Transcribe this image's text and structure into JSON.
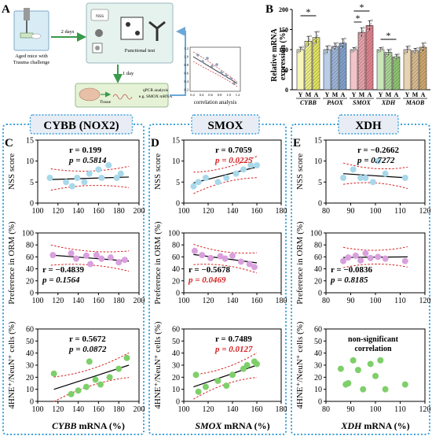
{
  "panel_letters": {
    "A": "A",
    "B": "B",
    "C": "C",
    "D": "D",
    "E": "E"
  },
  "panel_a": {
    "mice_label_line1": "Aged mice with",
    "mice_label_line2": "Trauma challenge",
    "arrow_2days": "2 days",
    "nss": "NSS",
    "functional_test": "Functional test",
    "arrow_1day": "1 day",
    "tissue": "Tissue",
    "qpcr_line1": "qPCR analysis",
    "qpcr_line2": "e.g. SMOX mRNA",
    "correlation": "correlation analysis",
    "mini_ticks_y": [
      "1.2",
      "1.0",
      "0.8",
      "0.6",
      "0.4",
      "0.2"
    ],
    "mini_ticks_x": [
      "0.2",
      "0.4",
      "0.6",
      "0.8",
      "1.0",
      "1.2"
    ]
  },
  "panel_b": {
    "ylabel_line1": "Relative mRNA",
    "ylabel_line2": "expression (%)",
    "yticks": [
      "0",
      "50",
      "100",
      "150",
      "200"
    ],
    "star": "*",
    "group_letters": [
      "Y",
      "M",
      "A"
    ],
    "colors": {
      "Y": "#f2f2a0",
      "M": "#e8e870",
      "A": "#d6d640",
      "bar_stroke": "#333333"
    },
    "chart_data": {
      "type": "bar",
      "ylim": [
        0,
        200
      ],
      "categories": [
        "CYBB",
        "PAOX",
        "SMOX",
        "XDH",
        "MAOB"
      ],
      "series": [
        {
          "name": "Y",
          "values": [
            100,
            100,
            100,
            100,
            100
          ],
          "err": [
            6,
            9,
            5,
            5,
            8
          ]
        },
        {
          "name": "M",
          "values": [
            121,
            108,
            143,
            93,
            97
          ],
          "err": [
            12,
            8,
            11,
            7,
            6
          ]
        },
        {
          "name": "A",
          "values": [
            130,
            116,
            160,
            82,
            106
          ],
          "err": [
            14,
            11,
            12,
            6,
            10
          ]
        }
      ],
      "bar_fills": [
        [
          "#f6f6b8",
          "#eeee88",
          "#e4e45c"
        ],
        [
          "#b8cde8",
          "#9bb6dc",
          "#7fa0cf"
        ],
        [
          "#f2c4c8",
          "#eaa2aa",
          "#e0808c"
        ],
        [
          "#c8e6b8",
          "#a8d690",
          "#8cc56c"
        ],
        [
          "#e8d2b0",
          "#dcbc8c",
          "#cfa66a"
        ]
      ]
    }
  },
  "cybb": {
    "title": "CYBB (NOX2)",
    "xlabel_italic": "CYBB",
    "xlabel_rest": " mRNA (%)",
    "xticks": [
      "100",
      "120",
      "140",
      "160",
      "180",
      "200"
    ],
    "nss": {
      "r": "r = 0.199",
      "p": "p = 0.5814",
      "ylabel": "NSS score",
      "yticks": [
        "0",
        "5",
        "10",
        "15"
      ],
      "chart_data": {
        "type": "scatter",
        "xlim": [
          100,
          200
        ],
        "ylim": [
          0,
          15
        ],
        "x": [
          112,
          128,
          134,
          139,
          146,
          151,
          160,
          163,
          170,
          178,
          182
        ],
        "y": [
          6,
          5,
          4,
          6,
          5,
          7,
          8,
          6,
          9,
          6,
          7
        ],
        "fit": [
          [
            113,
            5.6
          ],
          [
            190,
            6.2
          ]
        ]
      }
    },
    "orm": {
      "r": "r = −0.4839",
      "p": "p = 0.1564",
      "ylabel": "Preference in ORM (%)",
      "yticks": [
        "0",
        "20",
        "40",
        "60",
        "80",
        "100"
      ],
      "chart_data": {
        "type": "scatter",
        "xlim": [
          100,
          200
        ],
        "ylim": [
          0,
          100
        ],
        "x": [
          115,
          133,
          138,
          148,
          152,
          158,
          163,
          172,
          180,
          186
        ],
        "y": [
          63,
          66,
          57,
          62,
          48,
          63,
          57,
          59,
          51,
          55
        ],
        "fit": [
          [
            113,
            63
          ],
          [
            190,
            53
          ]
        ]
      }
    },
    "hne": {
      "r": "r = 0.5672",
      "p": "p = 0.0872",
      "ylabel": "4HNE⁺/NeuN⁺ cells (%)",
      "yticks": [
        "0",
        "10",
        "20",
        "30",
        "40",
        "50",
        "60"
      ],
      "chart_data": {
        "type": "scatter",
        "xlim": [
          100,
          200
        ],
        "ylim": [
          0,
          60
        ],
        "x": [
          116,
          133,
          140,
          148,
          151,
          157,
          162,
          171,
          180,
          188
        ],
        "y": [
          23,
          6,
          9,
          12,
          33,
          18,
          14,
          20,
          27,
          36
        ],
        "fit": [
          [
            116,
            10
          ],
          [
            190,
            30
          ]
        ]
      }
    }
  },
  "smox": {
    "title": "SMOX",
    "xlabel_italic": "SMOX",
    "xlabel_rest": " mRNA (%)",
    "xticks": [
      "100",
      "120",
      "140",
      "160",
      "180"
    ],
    "nss": {
      "r": "r = 0.7059",
      "p": "p = 0.0225",
      "ylabel": "NSS score",
      "yticks": [
        "0",
        "5",
        "10",
        "15"
      ],
      "chart_data": {
        "type": "scatter",
        "xlim": [
          100,
          180
        ],
        "ylim": [
          0,
          15
        ],
        "x": [
          108,
          112,
          118,
          128,
          135,
          143,
          149,
          155,
          160
        ],
        "y": [
          4,
          5,
          6,
          5,
          6,
          7,
          8,
          9,
          9
        ],
        "fit": [
          [
            108,
            4.8
          ],
          [
            160,
            8.6
          ]
        ]
      }
    },
    "orm": {
      "r": "r = −0.5678",
      "p": "p = 0.0469",
      "ylabel": "Preference in ORM (%)",
      "yticks": [
        "0",
        "20",
        "40",
        "60",
        "80",
        "100"
      ],
      "chart_data": {
        "type": "scatter",
        "xlim": [
          100,
          180
        ],
        "ylim": [
          0,
          100
        ],
        "x": [
          109,
          115,
          122,
          130,
          134,
          140,
          147,
          154,
          158
        ],
        "y": [
          70,
          63,
          58,
          61,
          57,
          62,
          52,
          48,
          43
        ],
        "fit": [
          [
            108,
            64
          ],
          [
            160,
            50
          ]
        ]
      }
    },
    "hne": {
      "r": "r = 0.7489",
      "p": "p = 0.0127",
      "ylabel": "4HNE⁺/NeuN⁺ cells (%)",
      "yticks": [
        "0",
        "10",
        "20",
        "30",
        "40",
        "50",
        "60"
      ],
      "chart_data": {
        "type": "scatter",
        "xlim": [
          100,
          180
        ],
        "ylim": [
          0,
          60
        ],
        "x": [
          110,
          112,
          118,
          128,
          135,
          140,
          149,
          152,
          158,
          160
        ],
        "y": [
          22,
          8,
          12,
          17,
          13,
          22,
          27,
          30,
          33,
          31
        ],
        "fit": [
          [
            108,
            12
          ],
          [
            160,
            30
          ]
        ]
      }
    }
  },
  "xdh": {
    "title": "XDH",
    "xlabel_italic": "XDH",
    "xlabel_rest": " mRNA (%)",
    "xticks": [
      "80",
      "90",
      "100",
      "110",
      "120"
    ],
    "nss": {
      "r": "r = −0.2662",
      "p": "p = 0.7272",
      "ylabel": "NSS score",
      "yticks": [
        "0",
        "5",
        "10",
        "15"
      ],
      "chart_data": {
        "type": "scatter",
        "xlim": [
          80,
          120
        ],
        "ylim": [
          0,
          15
        ],
        "x": [
          87,
          91,
          94,
          96,
          99,
          101,
          104,
          112
        ],
        "y": [
          6,
          8,
          6,
          6,
          5,
          10,
          7,
          6
        ],
        "fit": [
          [
            87,
            7.0
          ],
          [
            113,
            6.0
          ]
        ]
      }
    },
    "orm": {
      "r": "r = −0.0836",
      "p": "p = 0.8185",
      "ylabel": "Preference in ORM (%)",
      "yticks": [
        "0",
        "20",
        "40",
        "60",
        "80",
        "100"
      ],
      "chart_data": {
        "type": "scatter",
        "xlim": [
          80,
          120
        ],
        "ylim": [
          0,
          100
        ],
        "x": [
          87,
          89,
          92,
          94,
          96,
          98,
          101,
          104,
          112
        ],
        "y": [
          53,
          59,
          62,
          54,
          66,
          58,
          60,
          57,
          53
        ],
        "fit": [
          [
            87,
            59
          ],
          [
            113,
            60
          ]
        ]
      }
    },
    "hne": {
      "note_line1": "non-significant",
      "note_line2": "correlation",
      "ylabel": "4HNE⁺/NeuN⁺ cells (%)",
      "yticks": [
        "0",
        "10",
        "20",
        "30",
        "40",
        "50",
        "60"
      ],
      "chart_data": {
        "type": "scatter",
        "xlim": [
          80,
          120
        ],
        "ylim": [
          0,
          60
        ],
        "x": [
          86,
          88,
          89,
          91,
          93,
          95,
          98,
          100,
          102,
          104,
          112
        ],
        "y": [
          27,
          14,
          15,
          34,
          26,
          10,
          31,
          21,
          34,
          10,
          14
        ]
      }
    }
  },
  "colors": {
    "cybb_nss": "#a8d8ea",
    "cybb_orm": "#d9a0dd",
    "cybb_hne": "#7ecf6a",
    "smox_nss": "#a8d8ea",
    "smox_orm": "#d9a0dd",
    "smox_hne": "#7ecf6a",
    "xdh_nss": "#a8d8ea",
    "xdh_orm": "#d9a0dd",
    "xdh_hne": "#7ecf6a",
    "ci": "#d62020",
    "sig_p": "#d62020",
    "box_border": "#3aa0d8",
    "title_bg": "#e8edf5"
  }
}
